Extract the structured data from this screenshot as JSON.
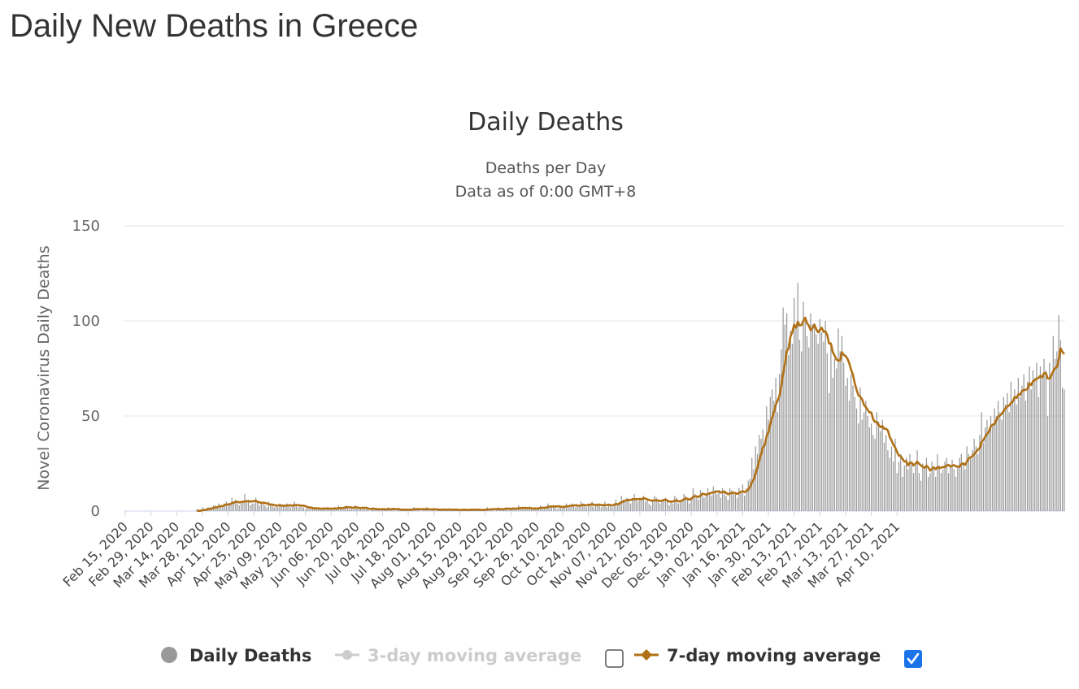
{
  "page": {
    "title": "Daily New Deaths in Greece"
  },
  "chart_data": {
    "type": "bar",
    "title": "Daily Deaths",
    "subtitle": "Deaths per Day",
    "subtitle2": "Data as of 0:00 GMT+8",
    "ylabel": "Novel Coronavirus Daily Deaths",
    "xlabel": "",
    "ylim": [
      0,
      150
    ],
    "yticks": [
      "0",
      "50",
      "100",
      "150"
    ],
    "x_start": "Feb 15, 2020",
    "x_end": "Apr 22, 2021",
    "x_tick_labels": [
      "Feb 15, 2020",
      "Feb 29, 2020",
      "Mar 14, 2020",
      "Mar 28, 2020",
      "Apr 11, 2020",
      "Apr 25, 2020",
      "May 09, 2020",
      "May 23, 2020",
      "Jun 06, 2020",
      "Jun 20, 2020",
      "Jul 04, 2020",
      "Jul 18, 2020",
      "Aug 01, 2020",
      "Aug 15, 2020",
      "Aug 29, 2020",
      "Sep 12, 2020",
      "Sep 26, 2020",
      "Oct 10, 2020",
      "Oct 24, 2020",
      "Nov 07, 2020",
      "Nov 21, 2020",
      "Dec 05, 2020",
      "Dec 19, 2020",
      "Jan 02, 2021",
      "Jan 16, 2021",
      "Jan 30, 2021",
      "Feb 13, 2021",
      "Feb 27, 2021",
      "Mar 13, 2021",
      "Mar 27, 2021",
      "Apr 10, 2021"
    ],
    "series": [
      {
        "name": "Daily Deaths",
        "type": "bar",
        "color": "#999999",
        "visible": true,
        "values": [
          0,
          0,
          0,
          0,
          0,
          0,
          0,
          0,
          0,
          0,
          0,
          0,
          0,
          0,
          0,
          0,
          0,
          0,
          0,
          0,
          0,
          0,
          0,
          0,
          0,
          0,
          0,
          0,
          0,
          0,
          0,
          0,
          0,
          0,
          0,
          0,
          0,
          0,
          0,
          1,
          0,
          0,
          2,
          1,
          1,
          2,
          2,
          1,
          3,
          3,
          2,
          4,
          3,
          3,
          4,
          5,
          3,
          4,
          7,
          5,
          6,
          4,
          3,
          4,
          5,
          9,
          5,
          6,
          3,
          4,
          4,
          7,
          5,
          3,
          4,
          4,
          3,
          2,
          5,
          3,
          3,
          2,
          3,
          2,
          4,
          3,
          3,
          2,
          4,
          3,
          2,
          3,
          5,
          3,
          2,
          3,
          2,
          2,
          1,
          2,
          1,
          2,
          1,
          1,
          2,
          1,
          1,
          1,
          2,
          1,
          2,
          1,
          1,
          1,
          2,
          1,
          3,
          2,
          1,
          2,
          3,
          2,
          1,
          2,
          1,
          3,
          2,
          1,
          1,
          2,
          2,
          1,
          1,
          0,
          1,
          2,
          1,
          1,
          1,
          0,
          1,
          1,
          1,
          2,
          1,
          1,
          1,
          0,
          1,
          1,
          0,
          1,
          1,
          1,
          0,
          1,
          1,
          2,
          1,
          1,
          1,
          0,
          1,
          1,
          2,
          1,
          0,
          1,
          1,
          0,
          1,
          1,
          1,
          1,
          0,
          1,
          1,
          0,
          1,
          1,
          1,
          0,
          0,
          1,
          1,
          1,
          0,
          1,
          1,
          0,
          1,
          1,
          1,
          0,
          0,
          1,
          1,
          2,
          1,
          1,
          1,
          0,
          1,
          2,
          1,
          1,
          1,
          2,
          1,
          1,
          1,
          2,
          1,
          1,
          3,
          2,
          1,
          2,
          1,
          1,
          2,
          1,
          1,
          2,
          1,
          2,
          3,
          2,
          1,
          2,
          4,
          3,
          2,
          3,
          2,
          1,
          3,
          2,
          2,
          3,
          4,
          3,
          2,
          4,
          3,
          2,
          3,
          2,
          5,
          4,
          3,
          2,
          4,
          3,
          5,
          2,
          3,
          4,
          3,
          2,
          3,
          5,
          2,
          4,
          3,
          2,
          4,
          6,
          4,
          5,
          8,
          6,
          5,
          7,
          6,
          4,
          7,
          9,
          6,
          5,
          7,
          6,
          8,
          5,
          6,
          4,
          3,
          6,
          8,
          7,
          5,
          4,
          5,
          6,
          7,
          5,
          3,
          5,
          4,
          8,
          7,
          4,
          5,
          6,
          9,
          8,
          6,
          4,
          7,
          12,
          9,
          8,
          6,
          11,
          10,
          7,
          9,
          12,
          10,
          8,
          13,
          11,
          9,
          10,
          7,
          12,
          10,
          8,
          6,
          12,
          11,
          9,
          10,
          7,
          12,
          10,
          14,
          8,
          12,
          16,
          17,
          28,
          22,
          34,
          30,
          40,
          38,
          43,
          36,
          55,
          48,
          60,
          64,
          58,
          70,
          52,
          72,
          85,
          107,
          98,
          104,
          82,
          95,
          88,
          112,
          96,
          120,
          90,
          84,
          110,
          100,
          92,
          86,
          104,
          98,
          97,
          93,
          88,
          101,
          94,
          89,
          100,
          83,
          62,
          88,
          70,
          80,
          75,
          96,
          84,
          92,
          78,
          66,
          70,
          58,
          72,
          66,
          60,
          54,
          46,
          65,
          48,
          52,
          58,
          50,
          44,
          46,
          40,
          38,
          52,
          47,
          42,
          48,
          36,
          40,
          32,
          28,
          34,
          26,
          38,
          20,
          26,
          30,
          18,
          24,
          28,
          22,
          30,
          26,
          20,
          24,
          32,
          20,
          16,
          25,
          22,
          28,
          18,
          20,
          26,
          22,
          18,
          30,
          24,
          20,
          22,
          26,
          28,
          20,
          24,
          27,
          22,
          18,
          24,
          28,
          30,
          26,
          22,
          34,
          30,
          28,
          32,
          38,
          34,
          30,
          40,
          52,
          36,
          44,
          48,
          42,
          50,
          46,
          54,
          50,
          58,
          52,
          48,
          60,
          56,
          62,
          52,
          68,
          58,
          64,
          56,
          70,
          60,
          66,
          72,
          58,
          68,
          76,
          64,
          74,
          70,
          78,
          60,
          76,
          70,
          80,
          74,
          50,
          78,
          72,
          92,
          80,
          84,
          103,
          90,
          65,
          64
        ]
      },
      {
        "name": "3-day moving average",
        "type": "line",
        "color": "#cccccc",
        "visible": false
      },
      {
        "name": "7-day moving average",
        "type": "line",
        "color": "#b07015",
        "visible": true
      }
    ],
    "legend_position": "bottom",
    "grid": true
  },
  "legend": {
    "items": [
      {
        "label": "Daily Deaths",
        "color": "#333333",
        "marker_color": "#999999",
        "checkbox": false
      },
      {
        "label": "3-day moving average",
        "color": "#cccccc",
        "marker_color": "#cccccc",
        "checkbox": true,
        "checked": false
      },
      {
        "label": "7-day moving average",
        "color": "#333333",
        "marker_color": "#b07015",
        "checkbox": true,
        "checked": true
      }
    ]
  },
  "colors": {
    "grid": "#e6e6e6",
    "axis": "#ccd6eb",
    "checkbox_checked": "#1a73e8"
  }
}
